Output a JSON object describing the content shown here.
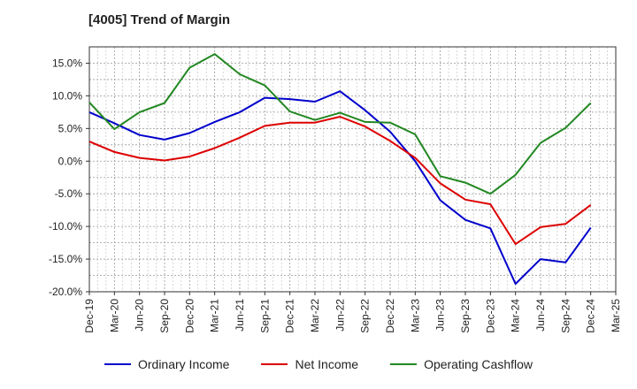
{
  "chart_data": {
    "type": "line",
    "title": "[4005]  Trend of Margin",
    "xlabel": "",
    "ylabel": "",
    "categories": [
      "Dec-19",
      "Mar-20",
      "Jun-20",
      "Sep-20",
      "Dec-20",
      "Mar-21",
      "Jun-21",
      "Sep-21",
      "Dec-21",
      "Mar-22",
      "Jun-22",
      "Sep-22",
      "Dec-22",
      "Mar-23",
      "Jun-23",
      "Sep-23",
      "Dec-23",
      "Mar-24",
      "Jun-24",
      "Sep-24",
      "Dec-24",
      "Mar-25"
    ],
    "ylim": [
      -20,
      17.5
    ],
    "yticks": [
      15,
      10,
      5,
      0,
      -5,
      -10,
      -15,
      -20
    ],
    "ytick_labels": [
      "15.0%",
      "10.0%",
      "5.0%",
      "0.0%",
      "-5.0%",
      "-10.0%",
      "-15.0%",
      "-20.0%"
    ],
    "grid": true,
    "legend_position": "bottom",
    "series": [
      {
        "name": "Ordinary Income",
        "color": "#0000cc",
        "values": [
          7.5,
          5.8,
          4.0,
          3.3,
          4.3,
          6.0,
          7.5,
          9.7,
          9.5,
          9.1,
          10.7,
          7.8,
          4.5,
          0.0,
          -6.0,
          -9.0,
          -10.3,
          -18.8,
          -15.0,
          -15.5,
          -10.2,
          null
        ]
      },
      {
        "name": "Net Income",
        "color": "#dd0000",
        "values": [
          3.0,
          1.4,
          0.5,
          0.1,
          0.7,
          2.0,
          3.6,
          5.4,
          5.9,
          5.9,
          6.8,
          5.3,
          3.1,
          0.5,
          -3.4,
          -5.9,
          -6.6,
          -12.7,
          -10.1,
          -9.6,
          -6.7,
          null
        ]
      },
      {
        "name": "Operating Cashflow",
        "color": "#228822",
        "values": [
          9.0,
          4.9,
          7.5,
          8.9,
          14.3,
          16.4,
          13.3,
          11.6,
          7.6,
          6.3,
          7.4,
          6.0,
          5.9,
          4.1,
          -2.3,
          -3.3,
          -5.0,
          -2.1,
          2.8,
          5.1,
          8.9,
          null
        ]
      }
    ]
  }
}
